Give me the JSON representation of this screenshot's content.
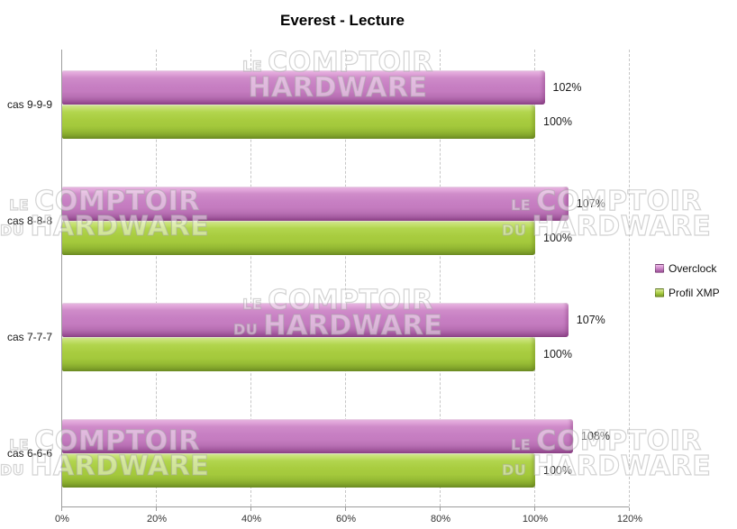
{
  "title": "Everest - Lecture",
  "watermark": {
    "l1_small": "le",
    "l1_big": "COMPTOIR",
    "l2_small": "du",
    "l2_big": "HARDWARE"
  },
  "x_axis": {
    "tick_labels": [
      "0%",
      "20%",
      "40%",
      "60%",
      "80%",
      "100%",
      "120%"
    ]
  },
  "legend": {
    "items": [
      {
        "label": "Overclock",
        "color": "#c77fc3"
      },
      {
        "label": "Profil XMP",
        "color": "#a8cc3f"
      }
    ]
  },
  "chart_data": {
    "type": "bar",
    "orientation": "horizontal",
    "title": "Everest - Lecture",
    "categories": [
      "cas 9-9-9",
      "cas 8-8-8",
      "cas 7-7-7",
      "cas 6-6-6"
    ],
    "series": [
      {
        "name": "Overclock",
        "color": "#c77fc3",
        "values": [
          102,
          107,
          107,
          108
        ]
      },
      {
        "name": "Profil XMP",
        "color": "#a8cc3f",
        "values": [
          100,
          100,
          100,
          100
        ]
      }
    ],
    "xlim": [
      0,
      120
    ],
    "x_ticks_percent": [
      0,
      20,
      40,
      60,
      80,
      100,
      120
    ],
    "grid": "vertical-dashed",
    "legend_position": "right"
  },
  "groups": [
    {
      "category": "cas 9-9-9",
      "overclock": 102,
      "overclock_label": "102%",
      "xmp": 100,
      "xmp_label": "100%"
    },
    {
      "category": "cas 8-8-8",
      "overclock": 107,
      "overclock_label": "107%",
      "xmp": 100,
      "xmp_label": "100%"
    },
    {
      "category": "cas 7-7-7",
      "overclock": 107,
      "overclock_label": "107%",
      "xmp": 100,
      "xmp_label": "100%"
    },
    {
      "category": "cas 6-6-6",
      "overclock": 108,
      "overclock_label": "108%",
      "xmp": 100,
      "xmp_label": "100%"
    }
  ]
}
